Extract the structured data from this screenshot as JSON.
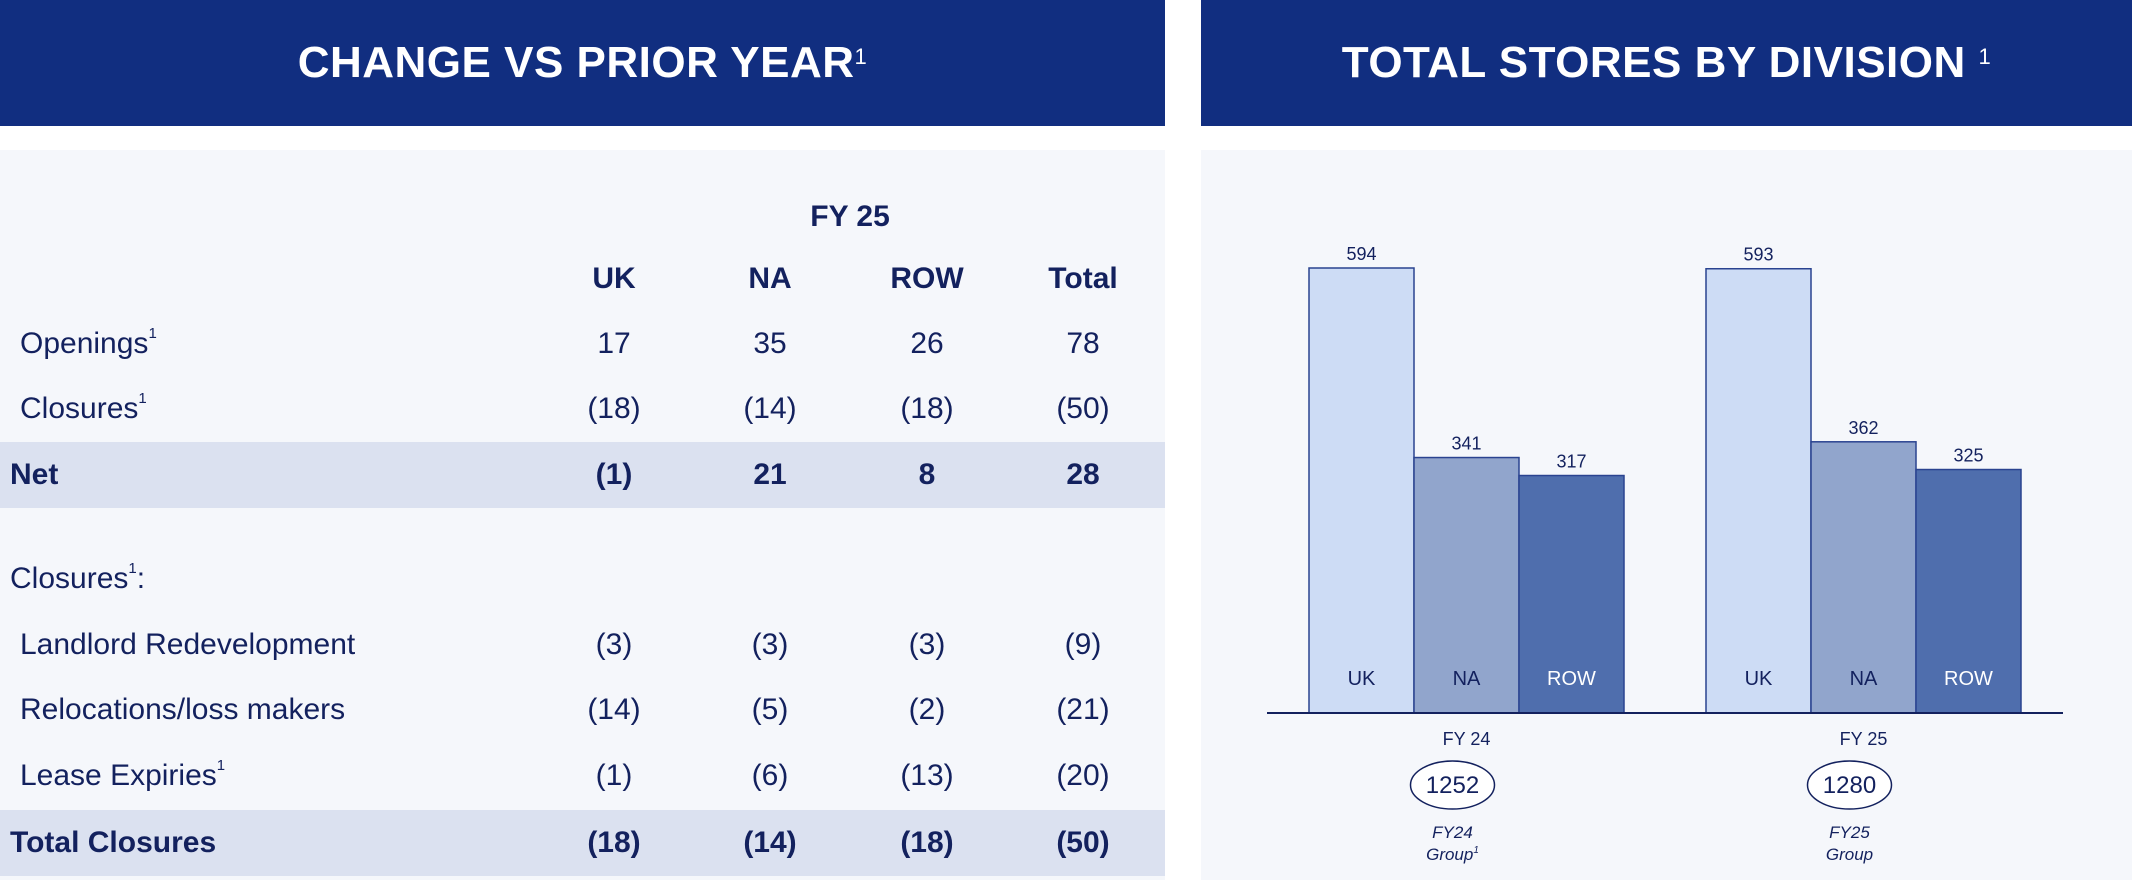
{
  "left": {
    "title": "CHANGE VS PRIOR YEAR",
    "title_sup": "1",
    "period": "FY 25",
    "columns": [
      "UK",
      "NA",
      "ROW",
      "Total"
    ],
    "rows": [
      {
        "label": "Openings",
        "sup": "1",
        "values": [
          "17",
          "35",
          "26",
          "78"
        ]
      },
      {
        "label": "Closures",
        "sup": "1",
        "values": [
          "(18)",
          "(14)",
          "(18)",
          "(50)"
        ]
      },
      {
        "label": "Net",
        "sup": "",
        "values": [
          "(1)",
          "21",
          "8",
          "28"
        ]
      }
    ],
    "section_label": "Closures",
    "section_sup": "1",
    "section_suffix": ":",
    "closure_rows": [
      {
        "label": "Landlord Redevelopment",
        "sup": "",
        "values": [
          "(3)",
          "(3)",
          "(3)",
          "(9)"
        ]
      },
      {
        "label": "Relocations/loss makers",
        "sup": "",
        "values": [
          "(14)",
          "(5)",
          "(2)",
          "(21)"
        ]
      },
      {
        "label": "Lease Expiries",
        "sup": "1",
        "values": [
          "(1)",
          "(6)",
          "(13)",
          "(20)"
        ]
      },
      {
        "label": "Total Closures",
        "sup": "",
        "values": [
          "(18)",
          "(14)",
          "(18)",
          "(50)"
        ]
      }
    ]
  },
  "chart_data": {
    "type": "bar",
    "title": "TOTAL STORES BY DIVISION",
    "title_sup": "1",
    "categories": [
      "FY 24",
      "FY 25"
    ],
    "series": [
      {
        "name": "UK",
        "values": [
          594,
          593
        ],
        "color": "#cddcf5"
      },
      {
        "name": "NA",
        "values": [
          341,
          362
        ],
        "color": "#91a5cc"
      },
      {
        "name": "ROW",
        "values": [
          317,
          325
        ],
        "color": "#4f6ead"
      }
    ],
    "totals": [
      {
        "value": "1252",
        "label1": "FY24",
        "label2": "Group",
        "sup": "1"
      },
      {
        "value": "1280",
        "label1": "FY25",
        "label2": "Group",
        "sup": ""
      }
    ],
    "ylim": [
      0,
      600
    ],
    "grid": false
  }
}
